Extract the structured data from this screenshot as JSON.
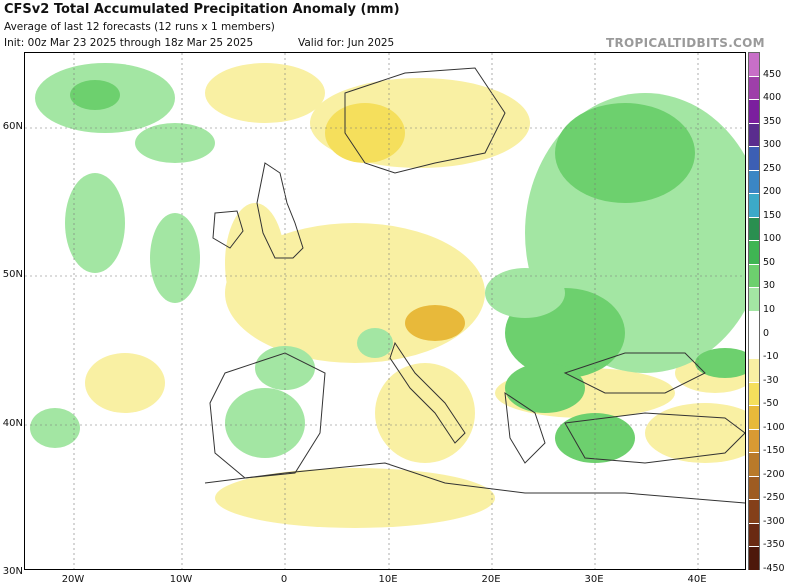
{
  "header": {
    "title": "CFSv2 Total Accumulated Precipitation Anomaly (mm)",
    "subtitle": "Average of last 12 forecasts (12 runs x 1 members)",
    "init": "Init: 00z Mar 23 2025 through 18z Mar 25 2025",
    "valid": "Valid for: Jun 2025",
    "brand": "TROPICALTIDBITS.COM"
  },
  "map": {
    "lat_labels": [
      "60N",
      "50N",
      "40N",
      "30N"
    ],
    "lon_labels": [
      "20W",
      "10W",
      "0",
      "10E",
      "20E",
      "30E",
      "40E"
    ]
  },
  "colorbar": {
    "labels": [
      "450",
      "400",
      "350",
      "300",
      "250",
      "200",
      "150",
      "100",
      "50",
      "30",
      "10",
      "0",
      "-10",
      "-30",
      "-50",
      "-100",
      "-150",
      "-200",
      "-250",
      "-300",
      "-350",
      "-450"
    ],
    "colors": [
      "#c86fc8",
      "#9e3fa9",
      "#7b1f9e",
      "#5a2d8e",
      "#3c5fb4",
      "#3b86c4",
      "#3ca9c8",
      "#2a8f50",
      "#3fb553",
      "#6dd06e",
      "#a3e6a3",
      "#ffffff",
      "#ffffff",
      "#f9f0a3",
      "#f5df5c",
      "#e8b93a",
      "#d99a33",
      "#b97a2a",
      "#9e5c22",
      "#844019",
      "#6a2a12",
      "#4d180b"
    ]
  }
}
